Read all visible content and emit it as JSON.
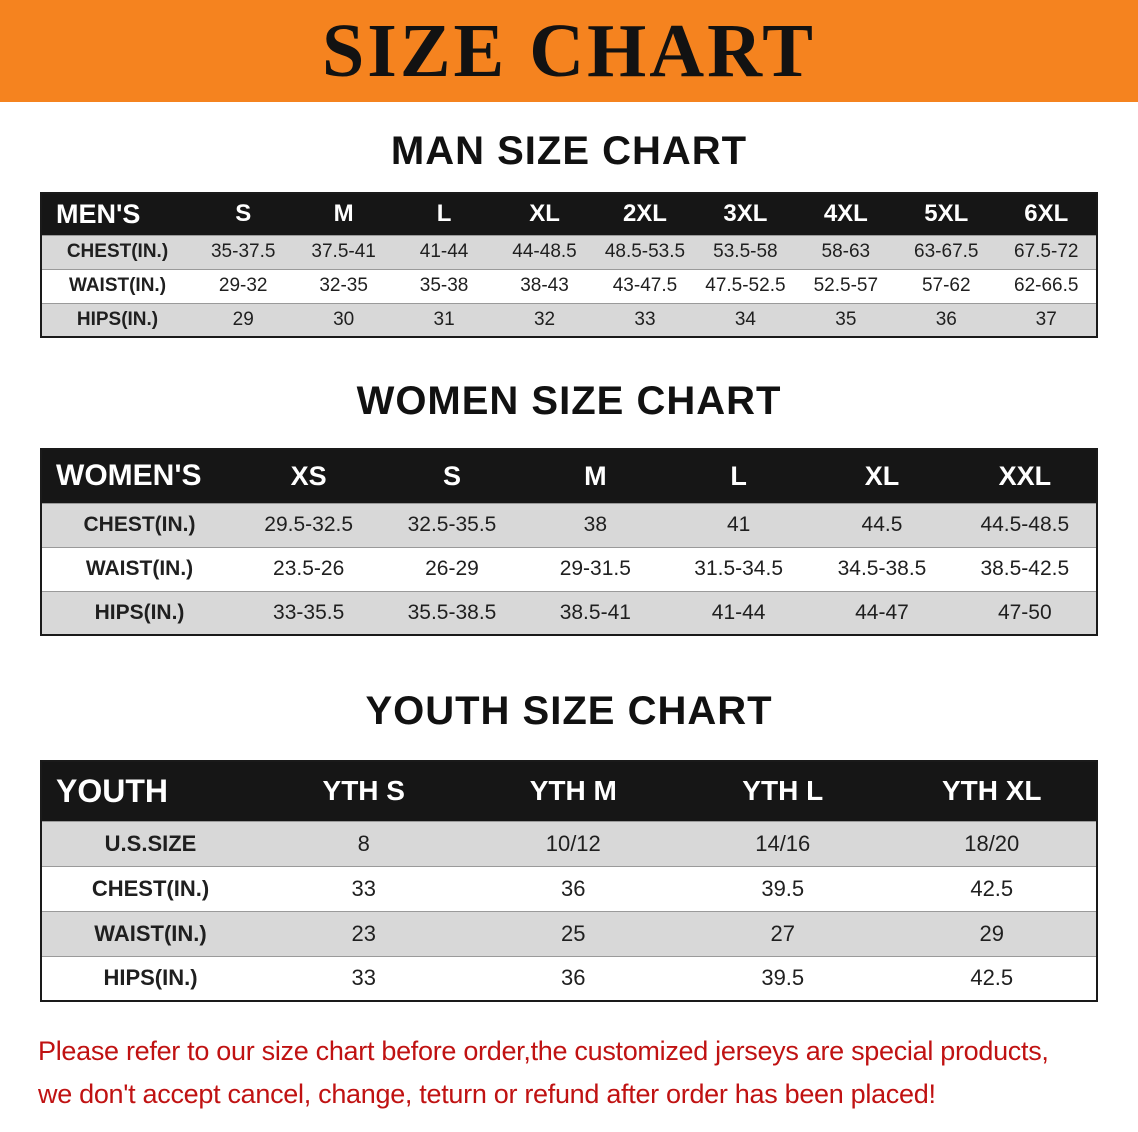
{
  "banner": {
    "title": "SIZE CHART",
    "bg_color": "#f5831f"
  },
  "sections": [
    {
      "heading": "MAN SIZE CHART",
      "table": {
        "header": [
          "MEN'S",
          "S",
          "M",
          "L",
          "XL",
          "2XL",
          "3XL",
          "4XL",
          "5XL",
          "6XL"
        ],
        "rows": [
          {
            "label": "CHEST(IN.)",
            "values": [
              "35-37.5",
              "37.5-41",
              "41-44",
              "44-48.5",
              "48.5-53.5",
              "53.5-58",
              "58-63",
              "63-67.5",
              "67.5-72"
            ]
          },
          {
            "label": "WAIST(IN.)",
            "values": [
              "29-32",
              "32-35",
              "35-38",
              "38-43",
              "43-47.5",
              "47.5-52.5",
              "52.5-57",
              "57-62",
              "62-66.5"
            ]
          },
          {
            "label": "HIPS(IN.)",
            "values": [
              "29",
              "30",
              "31",
              "32",
              "33",
              "34",
              "35",
              "36",
              "37"
            ]
          }
        ]
      }
    },
    {
      "heading": "WOMEN SIZE CHART",
      "table": {
        "header": [
          "WOMEN'S",
          "XS",
          "S",
          "M",
          "L",
          "XL",
          "XXL"
        ],
        "rows": [
          {
            "label": "CHEST(IN.)",
            "values": [
              "29.5-32.5",
              "32.5-35.5",
              "38",
              "41",
              "44.5",
              "44.5-48.5"
            ]
          },
          {
            "label": "WAIST(IN.)",
            "values": [
              "23.5-26",
              "26-29",
              "29-31.5",
              "31.5-34.5",
              "34.5-38.5",
              "38.5-42.5"
            ]
          },
          {
            "label": "HIPS(IN.)",
            "values": [
              "33-35.5",
              "35.5-38.5",
              "38.5-41",
              "41-44",
              "44-47",
              "47-50"
            ]
          }
        ]
      }
    },
    {
      "heading": "YOUTH SIZE CHART",
      "table": {
        "header": [
          "YOUTH",
          "YTH S",
          "YTH M",
          "YTH L",
          "YTH XL"
        ],
        "rows": [
          {
            "label": "U.S.SIZE",
            "values": [
              "8",
              "10/12",
              "14/16",
              "18/20"
            ]
          },
          {
            "label": "CHEST(IN.)",
            "values": [
              "33",
              "36",
              "39.5",
              "42.5"
            ]
          },
          {
            "label": "WAIST(IN.)",
            "values": [
              "23",
              "25",
              "27",
              "29"
            ]
          },
          {
            "label": "HIPS(IN.)",
            "values": [
              "33",
              "36",
              "39.5",
              "42.5"
            ]
          }
        ]
      }
    }
  ],
  "footer": {
    "line1": "Please refer to our size chart before order,the customized jerseys are special products,",
    "line2": "we don't accept cancel, change, teturn or refund after order has been placed!",
    "text_color": "#c01212"
  }
}
